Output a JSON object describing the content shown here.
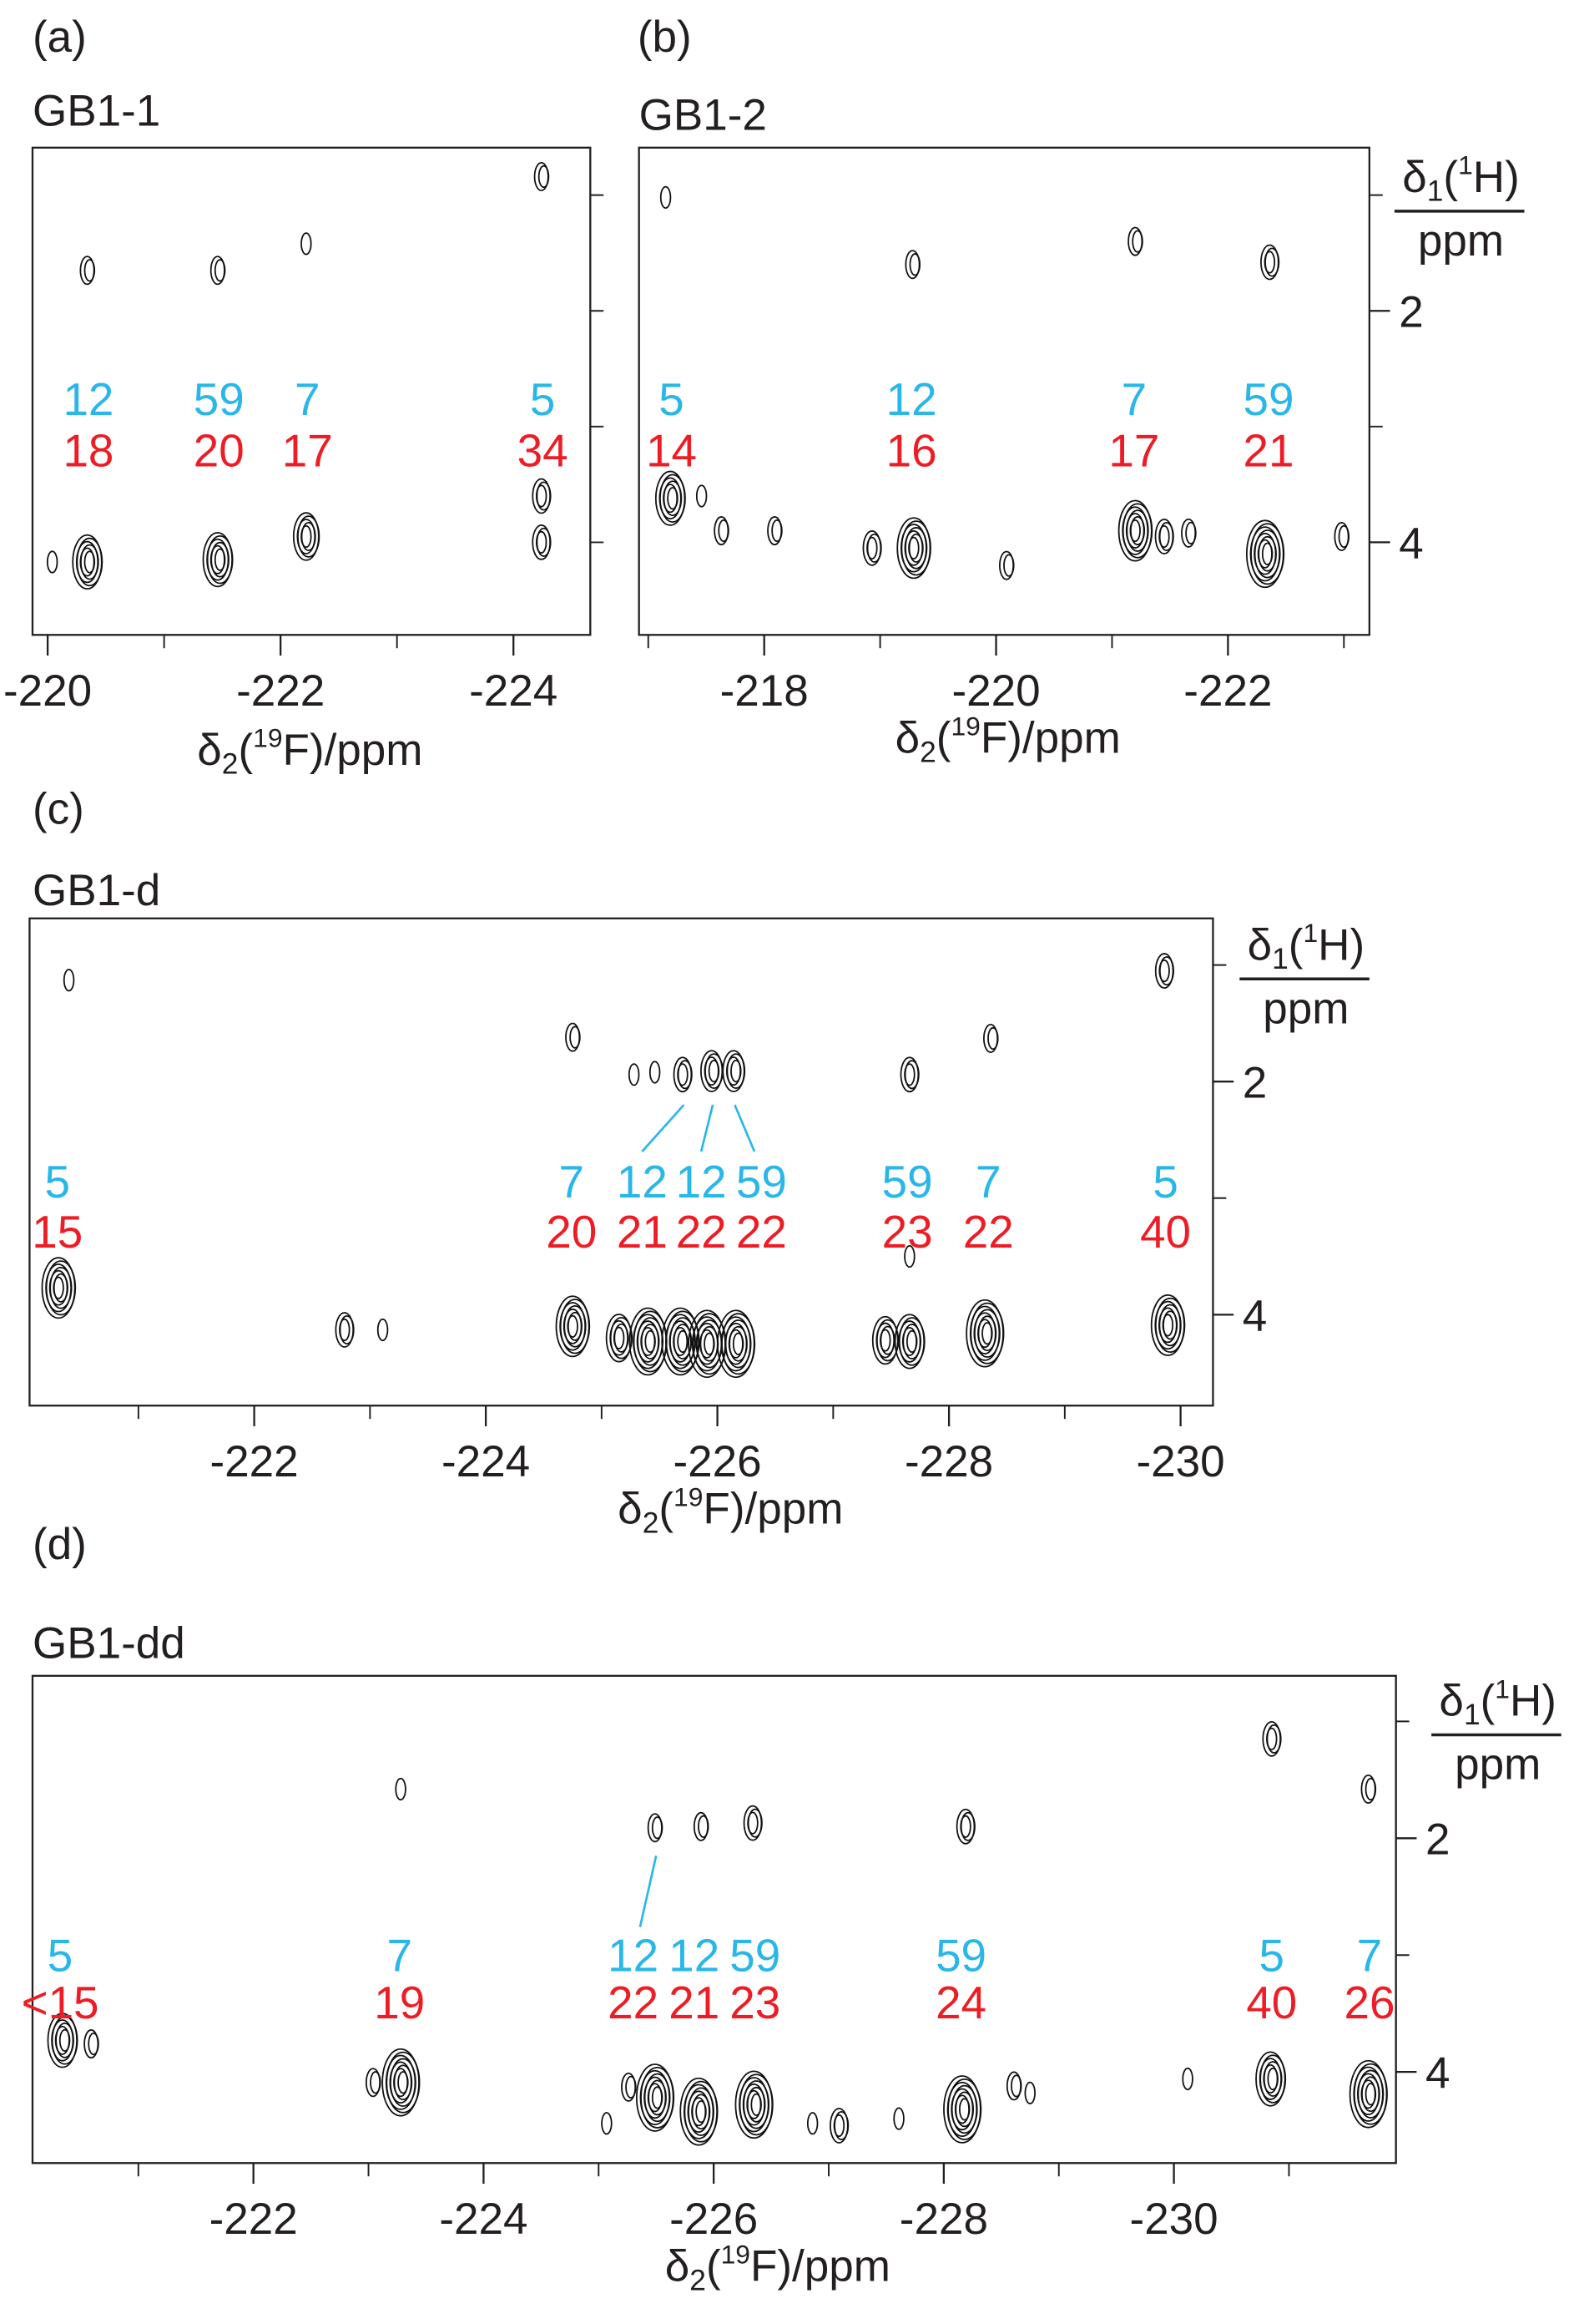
{
  "colors": {
    "residue": "#29b6e8",
    "value": "#ee1c25",
    "contour": "#111111",
    "axis": "#231f20"
  },
  "chart_data": [
    {
      "type": "scatter",
      "panel": "(a)",
      "title": "GB1-1",
      "xlabel": {
        "delta": "δ",
        "sub": "2",
        "paren": "(",
        "sup": "19",
        "rest": "F)/ppm"
      },
      "ylabel": null,
      "xlim": [
        -219.87,
        -224.66
      ],
      "ylim": [
        0.59,
        4.8
      ],
      "xticks": [
        -220,
        -222,
        -224
      ],
      "xticks_minor": [
        -221,
        -223
      ],
      "yticks": [],
      "yticks_unlabeled": [
        1,
        2,
        3,
        4
      ],
      "peaks": [
        [
          -220.35,
          1.65,
          2
        ],
        [
          -221.47,
          1.65,
          2
        ],
        [
          -222.23,
          1.42,
          1
        ],
        [
          -224.25,
          0.84,
          2
        ],
        [
          -220.05,
          4.17,
          1
        ],
        [
          -220.35,
          4.17,
          6
        ],
        [
          -221.47,
          4.15,
          6
        ],
        [
          -222.23,
          3.95,
          5
        ],
        [
          -224.25,
          3.6,
          3
        ],
        [
          -224.25,
          4.0,
          3
        ]
      ],
      "annotations": [
        {
          "residue": "12",
          "value": "18",
          "f": -220.35
        },
        {
          "residue": "59",
          "value": "20",
          "f": -221.47
        },
        {
          "residue": "7",
          "value": "17",
          "f": -222.23
        },
        {
          "residue": "5",
          "value": "34",
          "f": -224.25
        }
      ],
      "leaders": []
    },
    {
      "type": "scatter",
      "panel": "(b)",
      "title": "GB1-2",
      "xlabel": {
        "delta": "δ",
        "sub": "2",
        "paren": "(",
        "sup": "19",
        "rest": "F)/ppm"
      },
      "ylabel": {
        "delta": "δ",
        "sub": "1",
        "paren": "(",
        "sup": "1",
        "rest": "H)",
        "unit": "ppm"
      },
      "xlim": [
        -216.92,
        -223.22
      ],
      "ylim": [
        0.59,
        4.8
      ],
      "xticks": [
        -218,
        -220,
        -222
      ],
      "xticks_minor": [
        -217,
        -219,
        -221,
        -223
      ],
      "yticks": [
        2,
        4
      ],
      "yticks_unlabeled": [
        1,
        3
      ],
      "peaks": [
        [
          -217.16,
          1.02,
          1
        ],
        [
          -219.29,
          1.6,
          2
        ],
        [
          -221.21,
          1.4,
          2
        ],
        [
          -222.37,
          1.58,
          3
        ],
        [
          -217.2,
          3.62,
          6
        ],
        [
          -217.47,
          3.6,
          1
        ],
        [
          -217.64,
          3.9,
          2
        ],
        [
          -218.1,
          3.9,
          2
        ],
        [
          -218.94,
          4.05,
          3
        ],
        [
          -219.3,
          4.05,
          7
        ],
        [
          -220.1,
          4.2,
          2
        ],
        [
          -221.21,
          3.9,
          7
        ],
        [
          -221.46,
          3.95,
          3
        ],
        [
          -221.67,
          3.92,
          2
        ],
        [
          -222.33,
          4.1,
          8
        ],
        [
          -222.99,
          3.95,
          2
        ]
      ],
      "annotations": [
        {
          "residue": "5",
          "value": "14",
          "f": -217.2
        },
        {
          "residue": "12",
          "value": "16",
          "f": -219.27
        },
        {
          "residue": "7",
          "value": "17",
          "f": -221.19
        },
        {
          "residue": "59",
          "value": "21",
          "f": -222.35
        }
      ],
      "leaders": []
    },
    {
      "type": "scatter",
      "panel": "(c)",
      "title": "GB1-d",
      "xlabel": {
        "delta": "δ",
        "sub": "2",
        "paren": "(",
        "sup": "19",
        "rest": "F)/ppm"
      },
      "ylabel": {
        "delta": "δ",
        "sub": "1",
        "paren": "(",
        "sup": "1",
        "rest": "H)",
        "unit": "ppm"
      },
      "xlim": [
        -220.06,
        -230.28
      ],
      "ylim": [
        0.6,
        4.78
      ],
      "xticks": [
        -222,
        -224,
        -226,
        -228,
        -230
      ],
      "xticks_minor": [
        -221,
        -223,
        -225,
        -227,
        -229
      ],
      "yticks": [
        2,
        4
      ],
      "yticks_unlabeled": [
        1,
        3
      ],
      "peaks": [
        [
          -220.41,
          1.13,
          1
        ],
        [
          -220.32,
          3.77,
          7
        ],
        [
          -222.79,
          4.13,
          3
        ],
        [
          -223.12,
          4.13,
          1
        ],
        [
          -224.76,
          1.62,
          2
        ],
        [
          -224.76,
          4.1,
          7
        ],
        [
          -225.16,
          4.2,
          5
        ],
        [
          -225.29,
          1.94,
          1
        ],
        [
          -225.47,
          1.92,
          1
        ],
        [
          -225.71,
          1.94,
          3
        ],
        [
          -225.96,
          1.91,
          4
        ],
        [
          -226.15,
          1.91,
          4
        ],
        [
          -225.41,
          4.23,
          8
        ],
        [
          -225.69,
          4.23,
          8
        ],
        [
          -225.92,
          4.25,
          8
        ],
        [
          -226.17,
          4.25,
          8
        ],
        [
          -227.46,
          4.22,
          5
        ],
        [
          -227.67,
          1.94,
          3
        ],
        [
          -227.67,
          4.23,
          6
        ],
        [
          -227.67,
          3.5,
          1
        ],
        [
          -228.37,
          1.63,
          2
        ],
        [
          -228.32,
          4.16,
          8
        ],
        [
          -229.87,
          1.05,
          3
        ],
        [
          -229.9,
          4.09,
          7
        ]
      ],
      "annotations": [
        {
          "residue": "5",
          "value": "15",
          "f": -220.3
        },
        {
          "residue": "7",
          "value": "20",
          "f": -224.74
        },
        {
          "residue": "12",
          "value": "21",
          "f": -225.35
        },
        {
          "residue": "12",
          "value": "22",
          "f": -225.86
        },
        {
          "residue": "59",
          "value": "22",
          "f": -226.38
        },
        {
          "residue": "59",
          "value": "23",
          "f": -227.64
        },
        {
          "residue": "7",
          "value": "22",
          "f": -228.34
        },
        {
          "residue": "5",
          "value": "40",
          "f": -229.87
        }
      ],
      "leaders": [
        [
          -225.35,
          2.6,
          -225.71,
          2.2
        ],
        [
          -225.86,
          2.6,
          -225.96,
          2.2
        ],
        [
          -226.32,
          2.6,
          -226.15,
          2.2
        ]
      ]
    },
    {
      "type": "scatter",
      "panel": "(d)",
      "title": "GB1-dd",
      "xlabel": {
        "delta": "δ",
        "sub": "2",
        "paren": "(",
        "sup": "19",
        "rest": "F)/ppm"
      },
      "ylabel": {
        "delta": "δ",
        "sub": "1",
        "paren": "(",
        "sup": "1",
        "rest": "H)",
        "unit": "ppm"
      },
      "xlim": [
        -220.08,
        -231.93
      ],
      "ylim": [
        0.61,
        4.78
      ],
      "xticks": [
        -222,
        -224,
        -226,
        -228,
        -230
      ],
      "xticks_minor": [
        -221,
        -223,
        -225,
        -227,
        -229,
        -231
      ],
      "yticks": [
        2,
        4
      ],
      "yticks_unlabeled": [
        1,
        3
      ],
      "peaks": [
        [
          -220.35,
          3.73,
          6
        ],
        [
          -220.6,
          3.76,
          2
        ],
        [
          -223.05,
          4.09,
          2
        ],
        [
          -223.29,
          4.09,
          8
        ],
        [
          -223.29,
          1.58,
          1
        ],
        [
          -225.08,
          4.44,
          1
        ],
        [
          -225.27,
          4.13,
          2
        ],
        [
          -225.5,
          4.22,
          8
        ],
        [
          -225.5,
          1.91,
          2
        ],
        [
          -225.88,
          4.34,
          8
        ],
        [
          -225.9,
          1.9,
          2
        ],
        [
          -226.36,
          4.28,
          8
        ],
        [
          -226.35,
          1.87,
          3
        ],
        [
          -226.87,
          4.44,
          1
        ],
        [
          -227.1,
          4.46,
          3
        ],
        [
          -227.62,
          4.4,
          1
        ],
        [
          -228.17,
          4.32,
          8
        ],
        [
          -228.2,
          1.9,
          3
        ],
        [
          -228.62,
          4.12,
          2
        ],
        [
          -228.76,
          4.18,
          1
        ],
        [
          -230.13,
          4.06,
          1
        ],
        [
          -230.85,
          4.06,
          6
        ],
        [
          -230.86,
          1.15,
          3
        ],
        [
          -231.7,
          1.58,
          2
        ],
        [
          -231.7,
          4.19,
          8
        ]
      ],
      "annotations": [
        {
          "residue": "5",
          "value": "<15",
          "f": -220.32
        },
        {
          "residue": "7",
          "value": "19",
          "f": -223.27
        },
        {
          "residue": "12",
          "value": "22",
          "f": -225.3
        },
        {
          "residue": "12",
          "value": "21",
          "f": -225.83
        },
        {
          "residue": "59",
          "value": "23",
          "f": -226.36
        },
        {
          "residue": "59",
          "value": "24",
          "f": -228.15
        },
        {
          "residue": "5",
          "value": "40",
          "f": -230.85
        },
        {
          "residue": "7",
          "value": "26",
          "f": -231.7
        }
      ],
      "leaders": [
        [
          -225.36,
          2.76,
          -225.5,
          2.15
        ]
      ]
    }
  ]
}
